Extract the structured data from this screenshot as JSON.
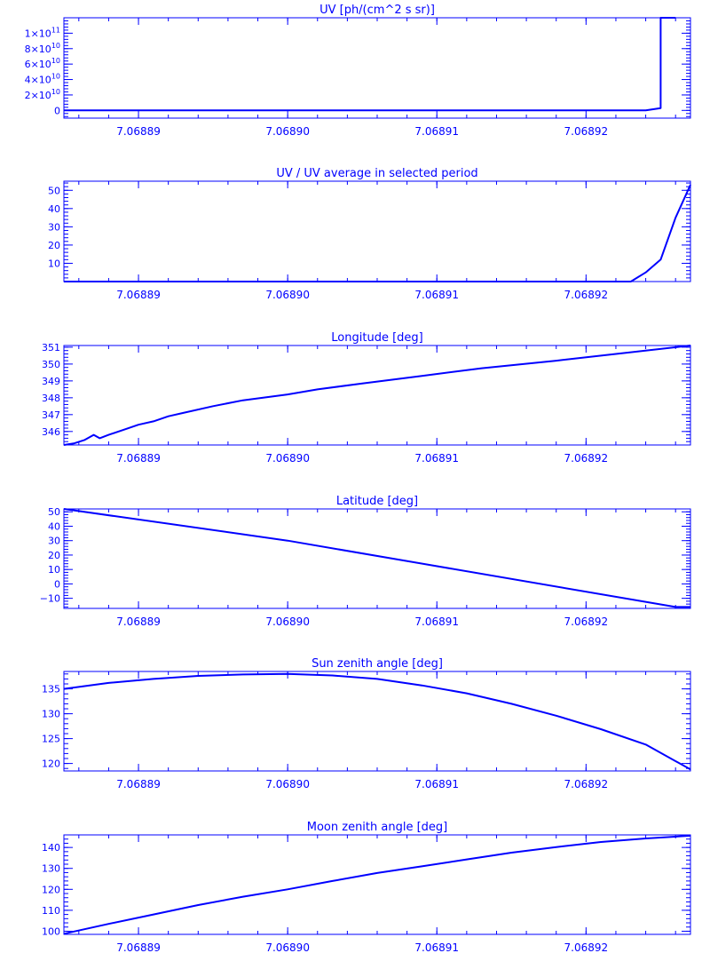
{
  "colors": {
    "plot": "#0000ff",
    "background": "#ffffff"
  },
  "chart_data": [
    {
      "type": "line",
      "title": "UV [ph/(cm^2 s sr)]",
      "xlim": [
        7.068885,
        7.068927
      ],
      "ylim": [
        -10000000000.0,
        120000000000.0
      ],
      "x_ticks": [
        7.06889,
        7.0689,
        7.06891,
        7.06892
      ],
      "x_tick_labels": [
        "7.06889",
        "7.06890",
        "7.06891",
        "7.06892"
      ],
      "y_ticks": [
        0,
        20000000000.0,
        40000000000.0,
        60000000000.0,
        80000000000.0,
        100000000000.0
      ],
      "y_tick_labels": [
        {
          "mantissa": "0",
          "exp": ""
        },
        {
          "mantissa": "2×10",
          "exp": "10"
        },
        {
          "mantissa": "4×10",
          "exp": "10"
        },
        {
          "mantissa": "6×10",
          "exp": "10"
        },
        {
          "mantissa": "8×10",
          "exp": "10"
        },
        {
          "mantissa": "1×10",
          "exp": "11"
        }
      ],
      "series": [
        {
          "x": [
            7.068885,
            7.06892,
            7.068924,
            7.068925,
            7.068925,
            7.068926
          ],
          "y": [
            0,
            0,
            0,
            3000000000.0,
            120000000000.0,
            120000000000.0
          ]
        }
      ]
    },
    {
      "type": "line",
      "title": "UV / UV average in selected period",
      "xlim": [
        7.068885,
        7.068927
      ],
      "ylim": [
        0,
        55
      ],
      "x_ticks": [
        7.06889,
        7.0689,
        7.06891,
        7.06892
      ],
      "x_tick_labels": [
        "7.06889",
        "7.06890",
        "7.06891",
        "7.06892"
      ],
      "y_ticks": [
        10,
        20,
        30,
        40,
        50
      ],
      "y_tick_labels": [
        {
          "mantissa": "10",
          "exp": ""
        },
        {
          "mantissa": "20",
          "exp": ""
        },
        {
          "mantissa": "30",
          "exp": ""
        },
        {
          "mantissa": "40",
          "exp": ""
        },
        {
          "mantissa": "50",
          "exp": ""
        }
      ],
      "series": [
        {
          "x": [
            7.068885,
            7.068923,
            7.068924,
            7.068925,
            7.068926,
            7.068927
          ],
          "y": [
            0,
            0,
            5,
            12,
            35,
            53
          ]
        }
      ]
    },
    {
      "type": "line",
      "title": "Longitude [deg]",
      "xlim": [
        7.068885,
        7.068927
      ],
      "ylim": [
        345.2,
        351.1
      ],
      "x_ticks": [
        7.06889,
        7.0689,
        7.06891,
        7.06892
      ],
      "x_tick_labels": [
        "7.06889",
        "7.06890",
        "7.06891",
        "7.06892"
      ],
      "y_ticks": [
        346,
        347,
        348,
        349,
        350,
        351
      ],
      "y_tick_labels": [
        {
          "mantissa": "346",
          "exp": ""
        },
        {
          "mantissa": "347",
          "exp": ""
        },
        {
          "mantissa": "348",
          "exp": ""
        },
        {
          "mantissa": "349",
          "exp": ""
        },
        {
          "mantissa": "350",
          "exp": ""
        },
        {
          "mantissa": "351",
          "exp": ""
        }
      ],
      "series": [
        {
          "x": [
            7.068885,
            7.0688857,
            7.0688864,
            7.068887,
            7.0688874,
            7.068888,
            7.068889,
            7.06889,
            7.068891,
            7.068892,
            7.068893,
            7.068895,
            7.068897,
            7.0689,
            7.068902,
            7.068905,
            7.068909,
            7.068913,
            7.068918,
            7.068922,
            7.068927
          ],
          "y": [
            345.2,
            345.3,
            345.5,
            345.8,
            345.6,
            345.8,
            346.1,
            346.4,
            346.6,
            346.9,
            347.1,
            347.5,
            347.85,
            348.2,
            348.5,
            348.85,
            349.3,
            349.75,
            350.2,
            350.6,
            351.1
          ]
        }
      ]
    },
    {
      "type": "line",
      "title": "Latitude [deg]",
      "xlim": [
        7.068885,
        7.068927
      ],
      "ylim": [
        -17,
        52
      ],
      "x_ticks": [
        7.06889,
        7.0689,
        7.06891,
        7.06892
      ],
      "x_tick_labels": [
        "7.06889",
        "7.06890",
        "7.06891",
        "7.06892"
      ],
      "y_ticks": [
        -10,
        0,
        10,
        20,
        30,
        40,
        50
      ],
      "y_tick_labels": [
        {
          "mantissa": "−10",
          "exp": ""
        },
        {
          "mantissa": "0",
          "exp": ""
        },
        {
          "mantissa": "10",
          "exp": ""
        },
        {
          "mantissa": "20",
          "exp": ""
        },
        {
          "mantissa": "30",
          "exp": ""
        },
        {
          "mantissa": "40",
          "exp": ""
        },
        {
          "mantissa": "50",
          "exp": ""
        }
      ],
      "series": [
        {
          "x": [
            7.068885,
            7.0689,
            7.068926,
            7.068927
          ],
          "y": [
            52,
            30,
            -16,
            -16
          ]
        }
      ]
    },
    {
      "type": "line",
      "title": "Sun zenith angle [deg]",
      "xlim": [
        7.068885,
        7.068927
      ],
      "ylim": [
        118.5,
        138.5
      ],
      "x_ticks": [
        7.06889,
        7.0689,
        7.06891,
        7.06892
      ],
      "x_tick_labels": [
        "7.06889",
        "7.06890",
        "7.06891",
        "7.06892"
      ],
      "y_ticks": [
        120,
        125,
        130,
        135
      ],
      "y_tick_labels": [
        {
          "mantissa": "120",
          "exp": ""
        },
        {
          "mantissa": "125",
          "exp": ""
        },
        {
          "mantissa": "130",
          "exp": ""
        },
        {
          "mantissa": "135",
          "exp": ""
        }
      ],
      "series": [
        {
          "x": [
            7.068885,
            7.068888,
            7.068891,
            7.068894,
            7.068897,
            7.0689,
            7.068903,
            7.068906,
            7.068909,
            7.068912,
            7.068915,
            7.068918,
            7.068921,
            7.068924,
            7.068927
          ],
          "y": [
            135,
            136.2,
            137.0,
            137.6,
            137.9,
            138.0,
            137.7,
            137.0,
            135.7,
            134.1,
            132.0,
            129.6,
            126.9,
            123.8,
            118.8
          ]
        }
      ]
    },
    {
      "type": "line",
      "title": "Moon zenith angle [deg]",
      "xlim": [
        7.068885,
        7.068927
      ],
      "ylim": [
        98.5,
        146
      ],
      "x_ticks": [
        7.06889,
        7.0689,
        7.06891,
        7.06892
      ],
      "x_tick_labels": [
        "7.06889",
        "7.06890",
        "7.06891",
        "7.06892"
      ],
      "y_ticks": [
        100,
        110,
        120,
        130,
        140
      ],
      "y_tick_labels": [
        {
          "mantissa": "100",
          "exp": ""
        },
        {
          "mantissa": "110",
          "exp": ""
        },
        {
          "mantissa": "120",
          "exp": ""
        },
        {
          "mantissa": "130",
          "exp": ""
        },
        {
          "mantissa": "140",
          "exp": ""
        }
      ],
      "series": [
        {
          "x": [
            7.068885,
            7.068888,
            7.068891,
            7.068894,
            7.068897,
            7.0689,
            7.068903,
            7.068906,
            7.068909,
            7.068912,
            7.068915,
            7.068918,
            7.068921,
            7.068924,
            7.068927
          ],
          "y": [
            98.8,
            103.5,
            108.0,
            112.5,
            116.5,
            120.0,
            124.0,
            127.8,
            131.0,
            134.3,
            137.5,
            140.2,
            142.6,
            144.3,
            145.6
          ]
        }
      ]
    }
  ]
}
